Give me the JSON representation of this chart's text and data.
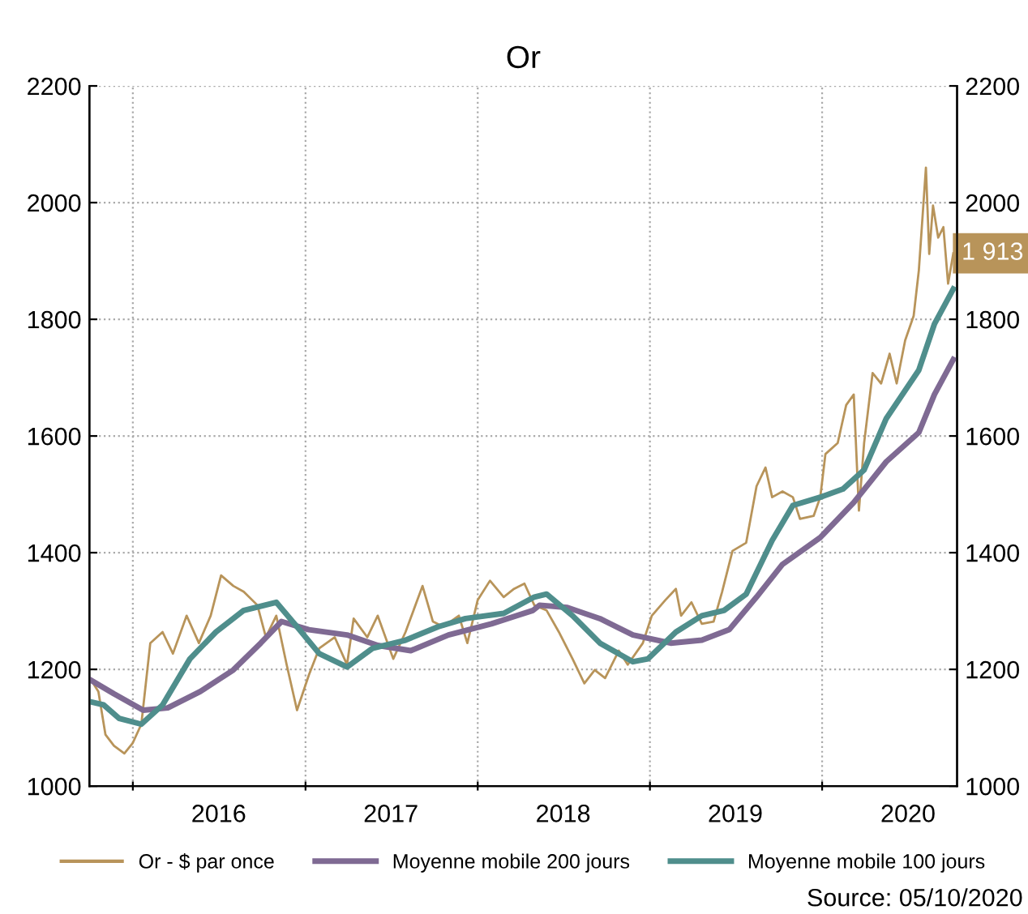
{
  "chart_data": {
    "type": "line",
    "title": "Or",
    "xlim": [
      "2015-10-01",
      "2020-10-13"
    ],
    "xticks": [
      {
        "value": "2016-01-01",
        "label": null
      },
      {
        "value": "2016-07-01",
        "label": "2016"
      },
      {
        "value": "2017-01-01",
        "label": null
      },
      {
        "value": "2017-07-01",
        "label": "2017"
      },
      {
        "value": "2018-01-01",
        "label": null
      },
      {
        "value": "2018-07-01",
        "label": "2018"
      },
      {
        "value": "2019-01-01",
        "label": null
      },
      {
        "value": "2019-07-01",
        "label": "2019"
      },
      {
        "value": "2020-01-01",
        "label": null
      },
      {
        "value": "2020-07-01",
        "label": "2020"
      }
    ],
    "ylim": [
      1000,
      2200
    ],
    "yticks": [
      1000,
      1200,
      1400,
      1600,
      1800,
      2000,
      2200
    ],
    "y2lim": [
      1000,
      2200
    ],
    "y2ticks": [
      1000,
      1200,
      1400,
      1600,
      1800,
      2000,
      2200
    ],
    "grid": true,
    "legend": "bottom",
    "line_style": "solid",
    "annotations": [
      "Source: 05/10/2020"
    ],
    "series": [
      {
        "name": "Or - $ par once",
        "color": "#b8945a",
        "x": [
          "2015-10-05",
          "2015-10-20",
          "2015-11-04",
          "2015-11-22",
          "2015-12-14",
          "2016-01-01",
          "2016-01-19",
          "2016-02-07",
          "2016-03-04",
          "2016-03-26",
          "2016-04-24",
          "2016-05-20",
          "2016-06-14",
          "2016-07-06",
          "2016-08-01",
          "2016-08-23",
          "2016-09-21",
          "2016-10-09",
          "2016-10-31",
          "2016-11-22",
          "2016-12-14",
          "2017-01-08",
          "2017-01-30",
          "2017-03-04",
          "2017-03-30",
          "2017-04-13",
          "2017-05-12",
          "2017-06-03",
          "2017-07-06",
          "2017-08-01",
          "2017-09-06",
          "2017-09-28",
          "2017-10-20",
          "2017-11-22",
          "2017-12-10",
          "2018-01-01",
          "2018-01-27",
          "2018-02-25",
          "2018-03-19",
          "2018-04-10",
          "2018-05-01",
          "2018-05-27",
          "2018-06-22",
          "2018-07-21",
          "2018-08-15",
          "2018-09-06",
          "2018-09-28",
          "2018-10-27",
          "2018-11-15",
          "2018-12-17",
          "2019-01-05",
          "2019-02-03",
          "2019-02-25",
          "2019-03-08",
          "2019-03-30",
          "2019-04-21",
          "2019-05-16",
          "2019-06-03",
          "2019-06-25",
          "2019-07-24",
          "2019-08-15",
          "2019-09-03",
          "2019-09-17",
          "2019-10-09",
          "2019-10-31",
          "2019-11-15",
          "2019-12-14",
          "2019-12-28",
          "2020-01-08",
          "2020-02-03",
          "2020-02-21",
          "2020-03-08",
          "2020-03-19",
          "2020-03-30",
          "2020-04-17",
          "2020-05-05",
          "2020-05-23",
          "2020-06-07",
          "2020-06-25",
          "2020-07-13",
          "2020-07-24",
          "2020-08-08",
          "2020-08-15",
          "2020-08-23",
          "2020-09-03",
          "2020-09-14",
          "2020-09-24",
          "2020-10-05"
        ],
        "values": [
          1181,
          1162,
          1088,
          1069,
          1056,
          1074,
          1106,
          1245,
          1264,
          1227,
          1292,
          1245,
          1292,
          1361,
          1343,
          1333,
          1310,
          1255,
          1292,
          1208,
          1130,
          1190,
          1236,
          1255,
          1208,
          1287,
          1255,
          1292,
          1218,
          1264,
          1343,
          1282,
          1273,
          1292,
          1245,
          1319,
          1352,
          1324,
          1338,
          1347,
          1310,
          1301,
          1264,
          1218,
          1176,
          1199,
          1185,
          1232,
          1208,
          1245,
          1292,
          1319,
          1338,
          1292,
          1315,
          1278,
          1282,
          1333,
          1403,
          1417,
          1514,
          1546,
          1495,
          1505,
          1495,
          1458,
          1463,
          1495,
          1569,
          1588,
          1653,
          1671,
          1472,
          1588,
          1708,
          1690,
          1741,
          1690,
          1764,
          1806,
          1884,
          2060,
          1912,
          1995,
          1940,
          1958,
          1861,
          1913
        ],
        "value_labels": [
          null,
          null,
          null,
          null,
          null,
          null,
          null,
          null,
          null,
          null,
          null,
          null,
          null,
          null,
          null,
          null,
          null,
          null,
          null,
          null,
          null,
          null,
          null,
          null,
          null,
          null,
          null,
          null,
          null,
          null,
          null,
          null,
          null,
          null,
          null,
          null,
          null,
          null,
          null,
          null,
          null,
          null,
          null,
          null,
          null,
          null,
          null,
          null,
          null,
          null,
          null,
          null,
          null,
          null,
          null,
          null,
          null,
          null,
          null,
          null,
          null,
          null,
          null,
          null,
          null,
          null,
          null,
          null,
          null,
          null,
          null,
          null,
          null,
          null,
          null,
          null,
          null,
          null,
          null,
          null,
          null,
          null,
          null,
          null,
          null,
          null,
          null,
          "1 913"
        ]
      },
      {
        "name": "Moyenne mobile 200 jours",
        "color": "#7f6a93",
        "x": [
          "2015-10-05",
          "2015-11-22",
          "2016-01-23",
          "2016-03-15",
          "2016-05-23",
          "2016-08-01",
          "2016-09-28",
          "2016-11-11",
          "2017-01-08",
          "2017-03-30",
          "2017-06-03",
          "2017-08-12",
          "2017-10-31",
          "2018-01-30",
          "2018-04-28",
          "2018-05-12",
          "2018-07-10",
          "2018-09-17",
          "2018-11-26",
          "2019-02-14",
          "2019-04-21",
          "2019-06-18",
          "2019-08-15",
          "2019-10-09",
          "2019-12-28",
          "2020-03-08",
          "2020-05-16",
          "2020-07-24",
          "2020-08-26",
          "2020-10-05"
        ],
        "values": [
          1181,
          1158,
          1130,
          1134,
          1162,
          1199,
          1245,
          1282,
          1268,
          1259,
          1241,
          1232,
          1259,
          1278,
          1301,
          1310,
          1306,
          1287,
          1259,
          1245,
          1250,
          1268,
          1324,
          1380,
          1426,
          1486,
          1556,
          1606,
          1671,
          1731
        ]
      },
      {
        "name": "Moyenne mobile 100 jours",
        "color": "#4f8e8c",
        "x": [
          "2015-10-05",
          "2015-10-31",
          "2015-12-03",
          "2016-01-19",
          "2016-03-04",
          "2016-05-01",
          "2016-06-25",
          "2016-08-23",
          "2016-10-31",
          "2016-12-14",
          "2017-01-30",
          "2017-03-30",
          "2017-05-23",
          "2017-08-01",
          "2017-10-09",
          "2017-12-06",
          "2018-02-25",
          "2018-05-01",
          "2018-05-27",
          "2018-07-21",
          "2018-09-17",
          "2018-11-26",
          "2018-12-28",
          "2019-02-25",
          "2019-04-21",
          "2019-06-07",
          "2019-07-24",
          "2019-09-17",
          "2019-10-31",
          "2019-12-28",
          "2020-02-14",
          "2020-03-30",
          "2020-05-16",
          "2020-07-24",
          "2020-08-26",
          "2020-10-05"
        ],
        "values": [
          1144,
          1139,
          1116,
          1106,
          1139,
          1218,
          1264,
          1301,
          1315,
          1273,
          1227,
          1204,
          1236,
          1250,
          1273,
          1287,
          1296,
          1324,
          1329,
          1292,
          1245,
          1213,
          1218,
          1264,
          1292,
          1301,
          1329,
          1421,
          1481,
          1495,
          1509,
          1542,
          1630,
          1713,
          1792,
          1852
        ]
      }
    ]
  }
}
